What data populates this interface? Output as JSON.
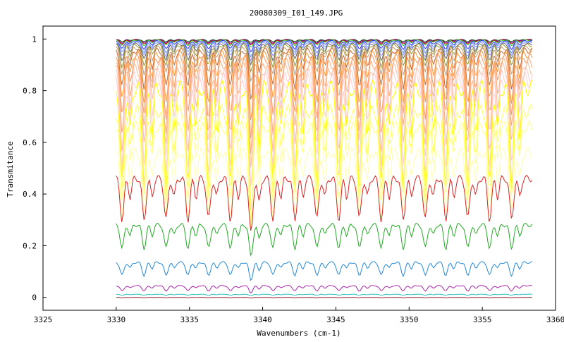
{
  "chart_data": {
    "type": "line",
    "title": "20080309_I01_149.JPG",
    "xlabel": "Wavenumbers (cm-1)",
    "ylabel": "Transmitance",
    "xlim": [
      3325,
      3360
    ],
    "ylim": [
      -0.05,
      1.05
    ],
    "x_ticks": [
      3325,
      3330,
      3335,
      3340,
      3345,
      3350,
      3355,
      3360
    ],
    "x_tick_labels": [
      "3325",
      "3330",
      "3335",
      "3340",
      "3345",
      "3350",
      "3355",
      "3360"
    ],
    "y_ticks": [
      0,
      0.2,
      0.4,
      0.6,
      0.8,
      1
    ],
    "y_tick_labels": [
      "0",
      "0.2",
      "0.4",
      "0.6",
      "0.8",
      "1"
    ],
    "grid": false,
    "legend": "none",
    "x_range": [
      3330,
      3358.4
    ],
    "sample_points": 300,
    "dip_positions": [
      3330.4,
      3331.9,
      3333.4,
      3334.9,
      3336.3,
      3337.8,
      3339.2,
      3340.7,
      3342.2,
      3343.7,
      3345.2,
      3346.6,
      3348.1,
      3349.6,
      3351.1,
      3352.5,
      3354.0,
      3355.5,
      3357.0
    ],
    "series": [
      {
        "color": "#006600",
        "baseline": 0.998,
        "depth": 0.008
      },
      {
        "color": "#9900cc",
        "baseline": 0.997,
        "depth": 0.012
      },
      {
        "color": "#cc0000",
        "baseline": 0.996,
        "depth": 0.015
      },
      {
        "color": "#33cc33",
        "baseline": 0.995,
        "depth": 0.02
      },
      {
        "color": "#3333ff",
        "baseline": 0.992,
        "depth": 0.03
      },
      {
        "color": "#6699ff",
        "baseline": 0.988,
        "depth": 0.04
      },
      {
        "color": "#9999ff",
        "baseline": 0.985,
        "depth": 0.05
      },
      {
        "color": "#666666",
        "baseline": 0.98,
        "depth": 0.06
      },
      {
        "color": "#999933",
        "baseline": 0.975,
        "depth": 0.08
      },
      {
        "color": "#cc9966",
        "baseline": 0.965,
        "depth": 0.1
      },
      {
        "color": "#cc6633",
        "baseline": 0.955,
        "depth": 0.14
      },
      {
        "color": "#ff9933",
        "baseline": 0.94,
        "depth": 0.18
      },
      {
        "color": "#ff9966",
        "baseline": 0.925,
        "depth": 0.22
      },
      {
        "color": "#ffaa77",
        "baseline": 0.905,
        "depth": 0.26
      },
      {
        "color": "#ffbb99",
        "baseline": 0.885,
        "depth": 0.3
      },
      {
        "color": "#ffcccc",
        "baseline": 0.86,
        "depth": 0.34
      },
      {
        "color": "#ffd0d0",
        "baseline": 0.84,
        "depth": 0.38
      },
      {
        "color": "#ffff00",
        "baseline": 0.81,
        "depth": 0.38
      },
      {
        "color": "#ffff55",
        "baseline": 0.72,
        "depth": 0.32
      },
      {
        "color": "#ffff88",
        "baseline": 0.66,
        "depth": 0.28
      },
      {
        "color": "#ffffaa",
        "baseline": 0.56,
        "depth": 0.24
      },
      {
        "color": "#dd2222",
        "baseline": 0.46,
        "depth": 0.16
      },
      {
        "color": "#22aa22",
        "baseline": 0.28,
        "depth": 0.09
      },
      {
        "color": "#2288dd",
        "baseline": 0.135,
        "depth": 0.05
      },
      {
        "color": "#aa22aa",
        "baseline": 0.045,
        "depth": 0.02
      },
      {
        "color": "#22bbbb",
        "baseline": 0.012,
        "depth": 0.004
      },
      {
        "color": "#882222",
        "baseline": 0.0,
        "depth": 0.002
      }
    ]
  }
}
